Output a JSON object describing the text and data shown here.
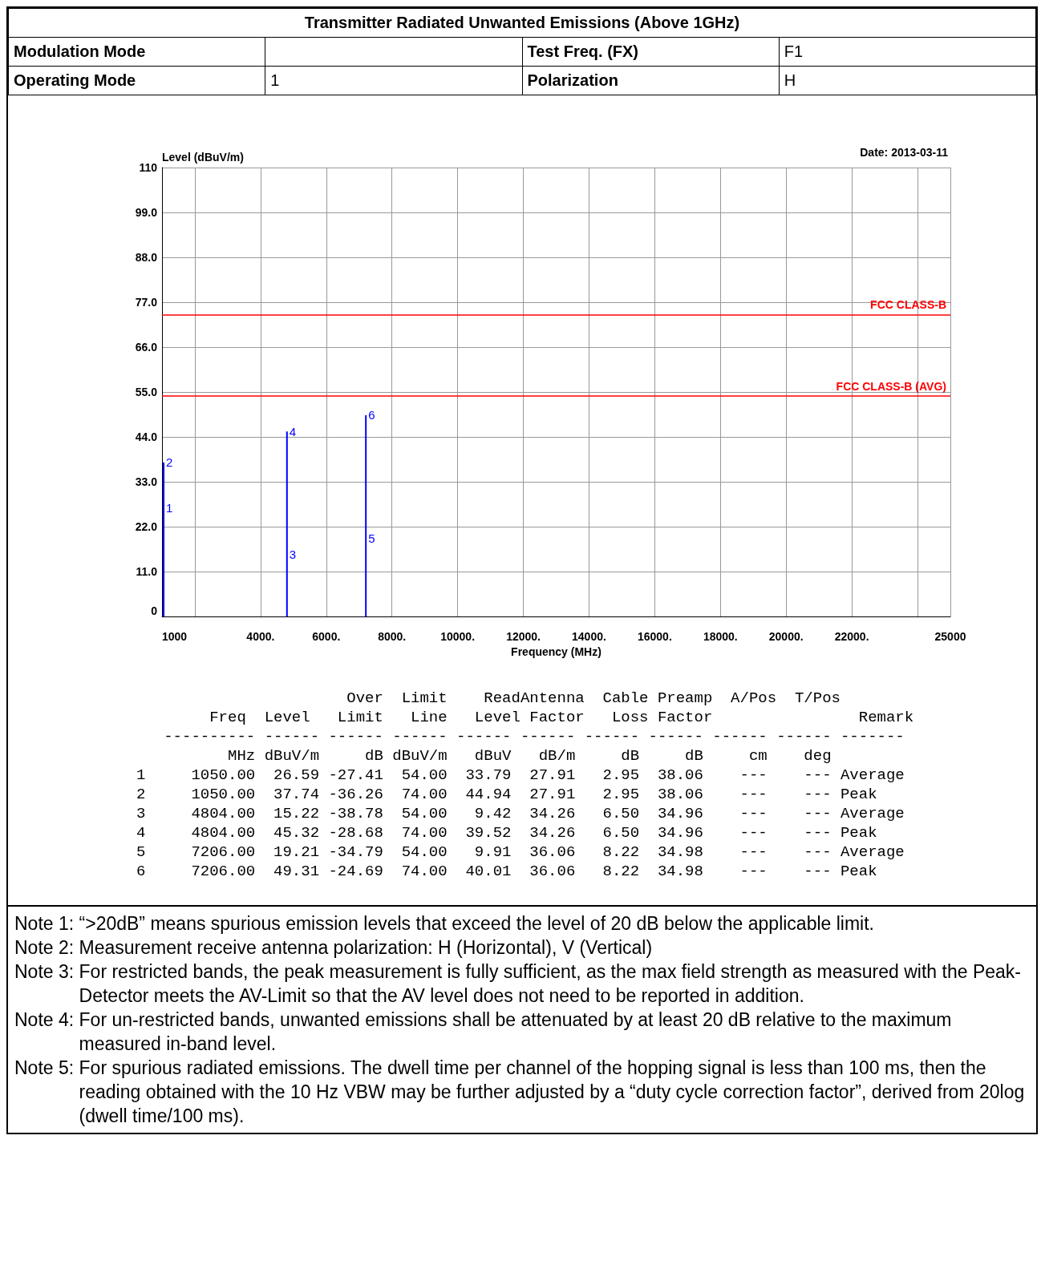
{
  "chart_data": {
    "type": "bar",
    "title": "Transmitter Radiated Unwanted Emissions (Above 1GHz)",
    "xlabel": "Frequency (MHz)",
    "ylabel": "Level (dBuV/m)",
    "series": [
      {
        "color": "#0000ff",
        "x": [
          1050,
          4804,
          7206
        ],
        "values": [
          37.74,
          45.32,
          49.31
        ]
      }
    ],
    "xlim": [
      1000,
      25000
    ],
    "xticks": [
      1000,
      {
        "value": 2000,
        "label": null
      },
      {
        "value": 4000,
        "label": "4000."
      },
      {
        "value": 6000,
        "label": "6000."
      },
      {
        "value": 8000,
        "label": "8000."
      },
      {
        "value": 10000,
        "label": "10000."
      },
      {
        "value": 12000,
        "label": "12000."
      },
      {
        "value": 14000,
        "label": "14000."
      },
      {
        "value": 16000,
        "label": "16000."
      },
      {
        "value": 18000,
        "label": "18000."
      },
      {
        "value": 20000,
        "label": "20000."
      },
      {
        "value": 22000,
        "label": "22000."
      },
      {
        "value": 24000,
        "label": null
      },
      25000
    ],
    "ylim": [
      0,
      110
    ],
    "yticks": [
      0,
      {
        "value": 11,
        "label": "11.0"
      },
      {
        "value": 22,
        "label": "22.0"
      },
      {
        "value": 33,
        "label": "33.0"
      },
      {
        "value": 44,
        "label": "44.0"
      },
      {
        "value": 55,
        "label": "55.0"
      },
      {
        "value": 66,
        "label": "66.0"
      },
      {
        "value": 77,
        "label": "77.0"
      },
      {
        "value": 88,
        "label": "88.0"
      },
      {
        "value": 99,
        "label": "99.0"
      },
      110
    ],
    "grid": true,
    "ref_lines": [
      {
        "axis": "y",
        "value": 74,
        "label": "FCC CLASS-B",
        "color": "#ff0000"
      },
      {
        "axis": "y",
        "value": 54,
        "label": "FCC CLASS-B (AVG)",
        "color": "#ff0000"
      }
    ],
    "annotations": [
      "Modulation Mode",
      "Test Freq. (FX)",
      "F1",
      "Operating Mode",
      "1",
      "Polarization",
      "H",
      "Date: 2013-03-11",
      "                       Over  Limit    ReadAntenna  Cable Preamp  A/Pos  T/Pos",
      "        Freq  Level   Limit   Line   Level Factor   Loss Factor                Remark",
      "   ---------- ------ ------ ------ ------ ------ ------ ------ ------ ------ -------",
      "          MHz dBuV/m     dB dBuV/m   dBuV   dB/m     dB     dB     cm    deg",
      "1     1050.00  26.59 -27.41  54.00  33.79  27.91   2.95  38.06    ---    --- Average",
      "2     1050.00  37.74 -36.26  74.00  44.94  27.91   2.95  38.06    ---    --- Peak",
      "3     4804.00  15.22 -38.78  54.00   9.42  34.26   6.50  34.96    ---    --- Average",
      "4     4804.00  45.32 -28.68  74.00  39.52  34.26   6.50  34.96    ---    --- Peak",
      "5     7206.00  19.21 -34.79  54.00   9.91  36.06   8.22  34.98    ---    --- Average",
      "6     7206.00  49.31 -24.69  74.00  40.01  36.06   8.22  34.98    ---    --- Peak",
      "Note 1: “>20dB” means spurious emission levels that exceed the level of 20 dB below the applicable limit.",
      "Note 2: Measurement receive antenna polarization: H (Horizontal), V (Vertical)",
      "Note 3: For restricted bands, the peak measurement is fully sufficient, as the max field strength as measured with the Peak-Detector meets the AV-Limit so that the AV level does not need to be reported in addition.",
      "Note 4: For un-restricted bands, unwanted emissions shall be attenuated by at least 20 dB relative to the maximum measured in-band level.",
      "Note 5: For spurious radiated emissions. The dwell time per channel of the hopping signal is less than 100 ms, then the reading obtained with the 10 Hz VBW may be further adjusted by a “duty cycle correction factor”, derived from 20log (dwell time/100 ms).",
      {
        "text": "1",
        "x": 1050,
        "y": 26.59
      },
      {
        "text": "2",
        "x": 1050,
        "y": 37.74
      },
      {
        "text": "3",
        "x": 4804,
        "y": 15.22
      },
      {
        "text": "4",
        "x": 4804,
        "y": 45.32
      },
      {
        "text": "5",
        "x": 7206,
        "y": 19.21
      },
      {
        "text": "6",
        "x": 7206,
        "y": 49.31
      }
    ]
  }
}
